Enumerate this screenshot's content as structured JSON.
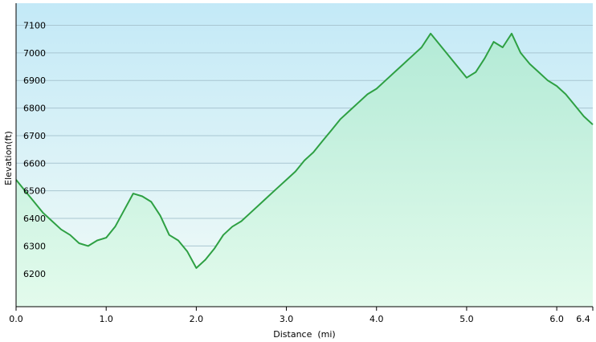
{
  "chart_data": {
    "type": "area",
    "title": "",
    "xlabel": "Distance  (mi)",
    "ylabel": "Elevation(ft)",
    "xlim": [
      0,
      6.4
    ],
    "ylim": [
      6080,
      7180
    ],
    "x_ticks": [
      "0.0",
      "1.0",
      "2.0",
      "3.0",
      "4.0",
      "5.0",
      "6.0",
      "6.4"
    ],
    "x_tick_values": [
      0,
      1,
      2,
      3,
      4,
      5,
      6,
      6.4
    ],
    "y_ticks": [
      "6200",
      "6300",
      "6400",
      "6500",
      "6600",
      "6700",
      "6800",
      "6900",
      "7000",
      "7100"
    ],
    "y_tick_values": [
      6200,
      6300,
      6400,
      6500,
      6600,
      6700,
      6800,
      6900,
      7000,
      7100
    ],
    "grid": true,
    "colors": {
      "line": "#2ea043",
      "fill_top": "#b3ead6",
      "fill_bottom": "#e3fbec",
      "bg_top": "#c3e9f7",
      "bg_bottom": "#f2fbf7",
      "grid": "#a9c6d2"
    },
    "series": [
      {
        "x": [
          0.0,
          0.1,
          0.2,
          0.3,
          0.4,
          0.5,
          0.6,
          0.7,
          0.8,
          0.9,
          1.0,
          1.1,
          1.2,
          1.3,
          1.4,
          1.5,
          1.6,
          1.7,
          1.8,
          1.9,
          2.0,
          2.1,
          2.2,
          2.3,
          2.4,
          2.5,
          2.6,
          2.7,
          2.8,
          2.9,
          3.0,
          3.1,
          3.2,
          3.3,
          3.4,
          3.5,
          3.6,
          3.7,
          3.8,
          3.9,
          4.0,
          4.1,
          4.2,
          4.3,
          4.4,
          4.5,
          4.6,
          4.7,
          4.8,
          4.9,
          5.0,
          5.1,
          5.2,
          5.3,
          5.4,
          5.5,
          5.6,
          5.7,
          5.8,
          5.9,
          6.0,
          6.1,
          6.2,
          6.3,
          6.4
        ],
        "values": [
          6540,
          6500,
          6460,
          6420,
          6390,
          6360,
          6340,
          6310,
          6300,
          6320,
          6330,
          6370,
          6430,
          6490,
          6480,
          6460,
          6410,
          6340,
          6320,
          6280,
          6220,
          6250,
          6290,
          6340,
          6370,
          6390,
          6420,
          6450,
          6480,
          6510,
          6540,
          6570,
          6610,
          6640,
          6680,
          6720,
          6760,
          6790,
          6820,
          6850,
          6870,
          6900,
          6930,
          6960,
          6990,
          7020,
          7070,
          7030,
          6990,
          6950,
          6910,
          6930,
          6980,
          7040,
          7020,
          7070,
          7000,
          6960,
          6930,
          6900,
          6880,
          6850,
          6810,
          6770,
          6740
        ]
      }
    ]
  }
}
